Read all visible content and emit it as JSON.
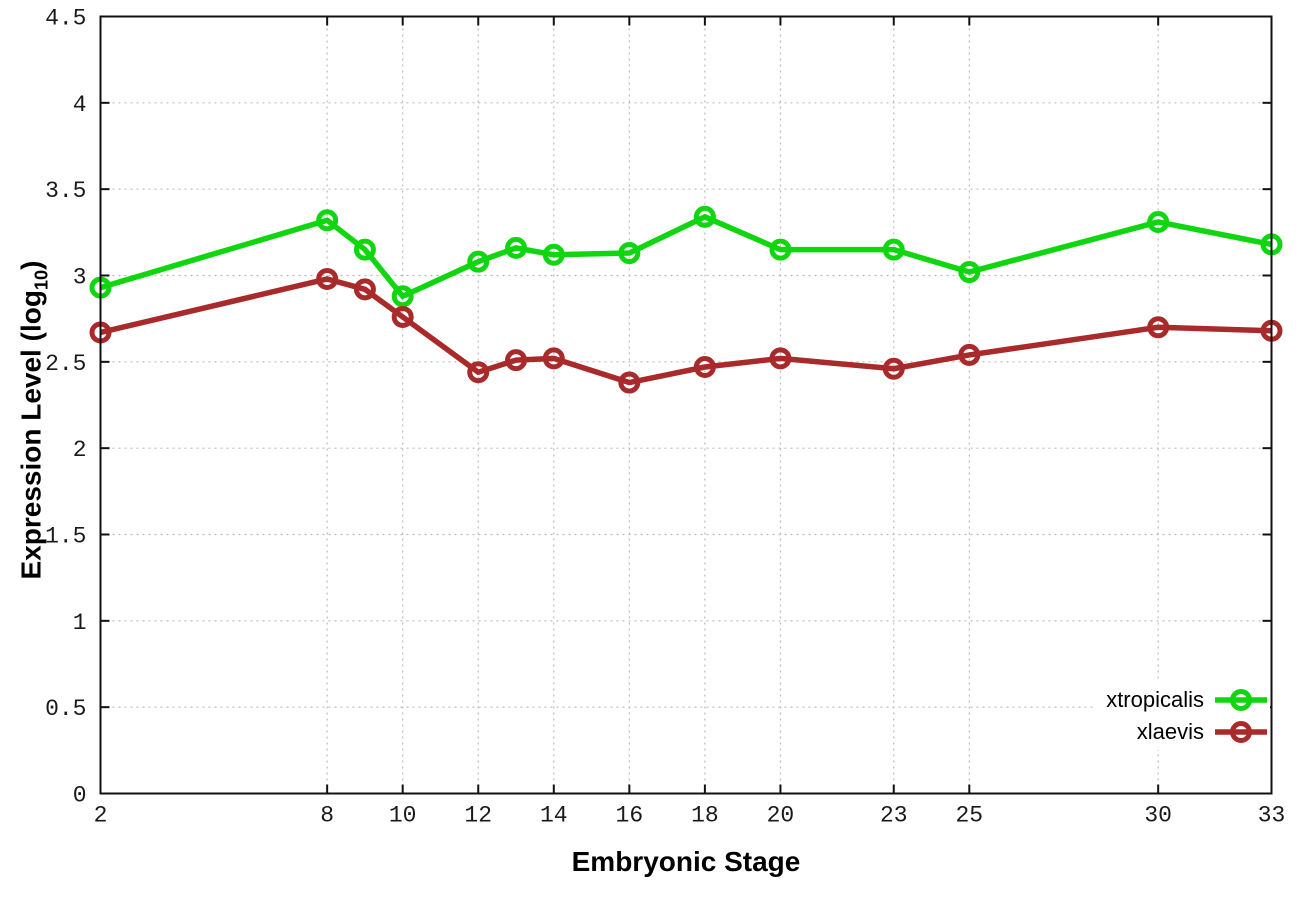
{
  "chart_data": {
    "type": "line",
    "title": "",
    "xlabel": "Embryonic Stage",
    "ylabel_prefix": "Expression Level (log",
    "ylabel_sub": "10",
    "ylabel_suffix": ")",
    "x": [
      2,
      8,
      9,
      10,
      12,
      13,
      14,
      16,
      18,
      20,
      23,
      25,
      30,
      33
    ],
    "xlim": [
      2,
      33
    ],
    "ylim": [
      0,
      4.5
    ],
    "xticks": {
      "values": [
        2,
        8,
        10,
        12,
        14,
        16,
        18,
        20,
        23,
        25,
        30,
        33
      ],
      "labels": [
        "2",
        "8",
        "10",
        "12",
        "14",
        "16",
        "18",
        "20",
        "23",
        "25",
        "30",
        "33"
      ]
    },
    "yticks": {
      "values": [
        0,
        0.5,
        1,
        1.5,
        2,
        2.5,
        3,
        3.5,
        4,
        4.5
      ],
      "labels": [
        "0",
        "0.5",
        "1",
        "1.5",
        "2",
        "2.5",
        "3",
        "3.5",
        "4",
        "4.5"
      ]
    },
    "grid": true,
    "legend_position": "inside-bottom-right",
    "series": [
      {
        "name": "xtropicalis",
        "color": "#0fd60f",
        "values": [
          2.93,
          3.32,
          3.15,
          2.88,
          3.08,
          3.16,
          3.12,
          3.13,
          3.34,
          3.15,
          3.15,
          3.02,
          3.31,
          3.18
        ]
      },
      {
        "name": "xlaevis",
        "color": "#a92a2a",
        "values": [
          2.67,
          2.98,
          2.92,
          2.76,
          2.44,
          2.51,
          2.52,
          2.38,
          2.47,
          2.52,
          2.46,
          2.54,
          2.7,
          2.68
        ]
      }
    ],
    "style": {
      "grid_color": "#bbbbbb",
      "border_color": "#111111",
      "tick_label_color": "#1a1a1a",
      "background": "#ffffff"
    }
  }
}
